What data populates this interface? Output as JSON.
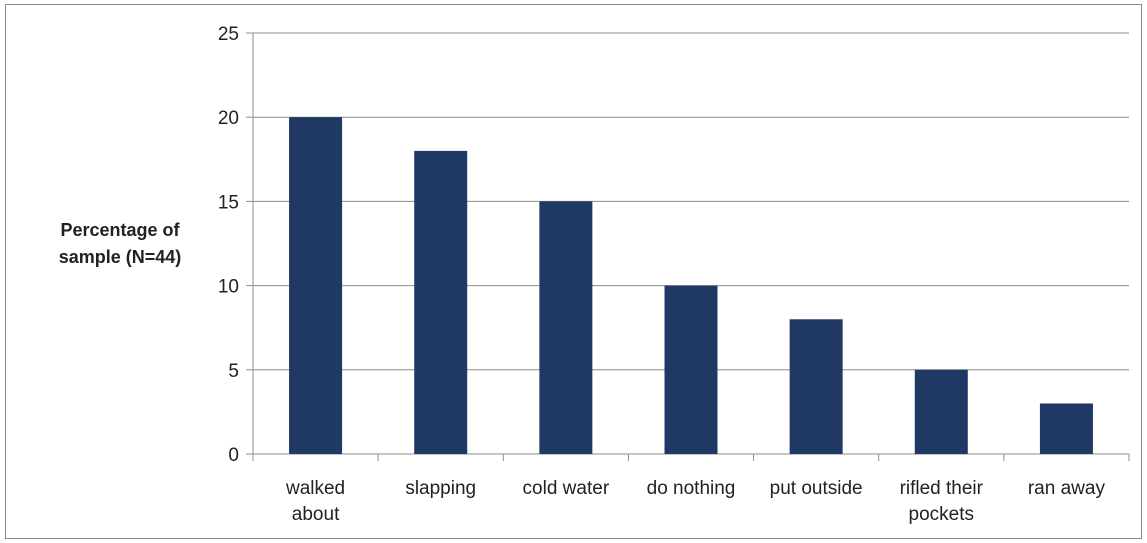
{
  "chart_data": {
    "type": "bar",
    "categories": [
      [
        "walked",
        "about"
      ],
      [
        "slapping"
      ],
      [
        "cold water"
      ],
      [
        "do nothing"
      ],
      [
        "put outside"
      ],
      [
        "rifled their",
        "pockets"
      ],
      [
        "ran away"
      ]
    ],
    "values": [
      20,
      18,
      15,
      10,
      8,
      5,
      3
    ],
    "ylabel": [
      "Percentage of",
      "sample (N=44)"
    ],
    "ylim": [
      0,
      25
    ],
    "yticks": [
      0,
      5,
      10,
      15,
      20,
      25
    ],
    "grid": true,
    "legend": "none",
    "bar_color": "#1F3864",
    "grid_color": "#8c8c8c"
  }
}
